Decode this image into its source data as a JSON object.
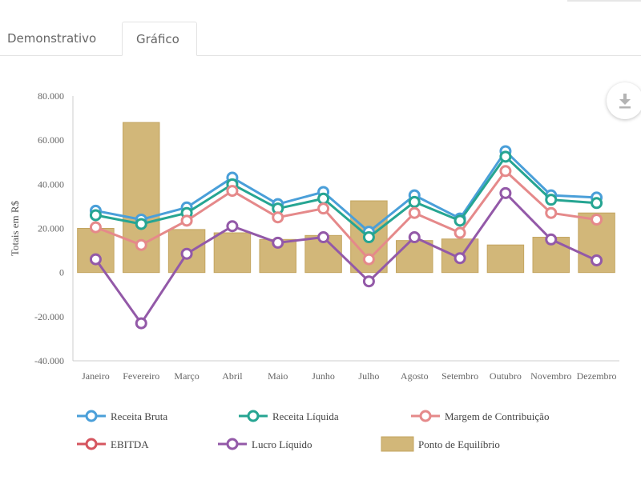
{
  "tabs": [
    {
      "label": "Demonstrativo",
      "active": false
    },
    {
      "label": "Gráfico",
      "active": true
    }
  ],
  "download_icon": "download-icon",
  "chart_data": {
    "type": "bar+line",
    "categories": [
      "Janeiro",
      "Fevereiro",
      "Março",
      "Abril",
      "Maio",
      "Junho",
      "Julho",
      "Agosto",
      "Setembro",
      "Outubro",
      "Novembro",
      "Dezembro"
    ],
    "ylabel": "Totais em R$",
    "xlabel": "",
    "ylim": [
      -40000,
      80000
    ],
    "yticks": [
      80000,
      60000,
      40000,
      20000,
      0,
      -20000,
      -40000
    ],
    "ytick_labels": [
      "80.000",
      "60.000",
      "40.000",
      "20.000",
      "0",
      "-20.000",
      "-40.000"
    ],
    "grid": false,
    "legend_position": "bottom",
    "bars": {
      "name": "Ponto de Equilíbrio",
      "color": "#d2b779",
      "values": [
        20000,
        68000,
        19500,
        18000,
        15000,
        16800,
        32500,
        14500,
        15200,
        12500,
        16000,
        27000
      ]
    },
    "series": [
      {
        "name": "Receita Bruta",
        "color": "#4a9fd9",
        "values": [
          28000,
          24000,
          29500,
          43000,
          31000,
          36500,
          18500,
          35000,
          24500,
          55000,
          35000,
          34000
        ]
      },
      {
        "name": "Receita Líquida",
        "color": "#26a592",
        "values": [
          26000,
          22000,
          27000,
          40000,
          29000,
          33500,
          16000,
          32000,
          23500,
          52500,
          33000,
          31500
        ]
      },
      {
        "name": "Margem de Contribuição",
        "color": "#e5898a",
        "values": [
          20500,
          12500,
          23500,
          37000,
          25000,
          29000,
          6000,
          27000,
          18000,
          46000,
          27000,
          24000
        ]
      },
      {
        "name": "EBITDA",
        "color": "#d5555f",
        "values": null
      },
      {
        "name": "Lucro Líquido",
        "color": "#9359a8",
        "values": [
          6000,
          -23000,
          8500,
          21000,
          13500,
          16000,
          -4000,
          16000,
          6500,
          36000,
          15000,
          5500
        ]
      }
    ],
    "legend": [
      "Receita Bruta",
      "Receita Líquida",
      "Margem de Contribuição",
      "EBITDA",
      "Lucro Líquido",
      "Ponto de Equilíbrio"
    ]
  }
}
